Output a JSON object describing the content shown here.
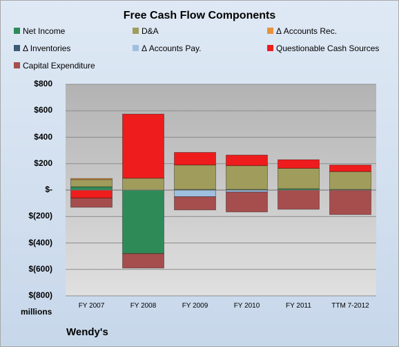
{
  "chart_data": {
    "type": "bar",
    "stacked": true,
    "title": "Free Cash Flow Components",
    "unit_label": "millions",
    "categories": [
      "FY 2007",
      "FY 2008",
      "FY 2009",
      "FY 2010",
      "FY 2011",
      "TTM 7-2012"
    ],
    "yticks": [
      -800,
      -600,
      -400,
      -200,
      0,
      200,
      400,
      600,
      800
    ],
    "ytick_labels": [
      "$(800)",
      "$(600)",
      "$(400)",
      "$(200)",
      "$-",
      "$200",
      "$400",
      "$600",
      "$800"
    ],
    "ylim": [
      -800,
      800
    ],
    "grid": true,
    "legend_position": "top",
    "series": [
      {
        "name": "Net Income",
        "color": "#2e8b57",
        "values": [
          25,
          -480,
          5,
          5,
          10,
          5
        ]
      },
      {
        "name": "D&A",
        "color": "#a09c5c",
        "values": [
          55,
          90,
          185,
          180,
          155,
          135
        ]
      },
      {
        "name": "Δ Accounts Rec.",
        "color": "#e8923a",
        "values": [
          8,
          0,
          0,
          0,
          0,
          0
        ]
      },
      {
        "name": "Δ Inventories",
        "color": "#3f5a73",
        "values": [
          0,
          0,
          0,
          0,
          0,
          0
        ]
      },
      {
        "name": "Δ Accounts Pay.",
        "color": "#9fbfdf",
        "values": [
          0,
          0,
          -50,
          -15,
          0,
          0
        ]
      },
      {
        "name": "Questionable Cash Sources",
        "color": "#ee1c1c",
        "values": [
          -60,
          485,
          95,
          80,
          65,
          50
        ]
      },
      {
        "name": "Capital Expenditure",
        "color": "#a64d4d",
        "values": [
          -70,
          -110,
          -100,
          -150,
          -145,
          -185
        ]
      }
    ]
  },
  "footer": {
    "company": "Wendy's"
  }
}
